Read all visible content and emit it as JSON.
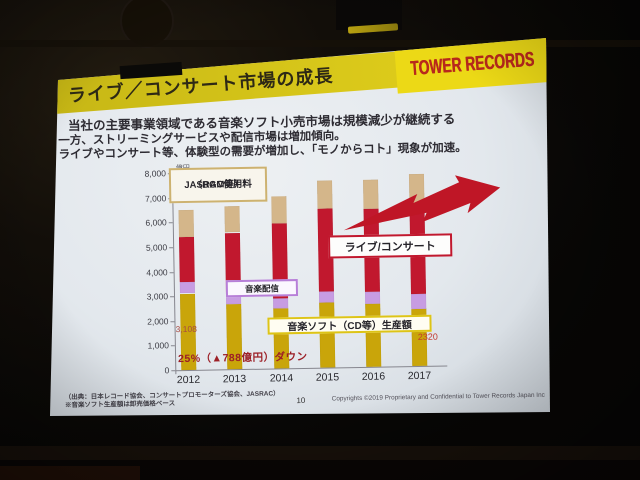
{
  "slide": {
    "title": "ライブ／コンサート市場の成長",
    "logo_text": "TOWER RECORDS",
    "body_lines": [
      "当社の主要事業領域である音楽ソフト小売市場は規模減少が継続する",
      "一方、ストリーミングサービスや配信市場は増加傾向。",
      "ライブやコンサート等、体験型の需要が増加し、「モノからコト」現象が加速。"
    ],
    "footer": {
      "source_line1": "（出典：日本レコード協会、コンサートプロモーターズ協会、JASRAC）",
      "source_line2": "※音楽ソフト生産額は卸売価格ベース",
      "page_number": "10",
      "copyright": "Copyrights ©2019  Proprietary and Confidential to Tower Records Japan Inc"
    }
  },
  "chart_data": {
    "type": "bar",
    "stacked": true,
    "title": "ライブ／コンサート市場の成長",
    "xlabel": "",
    "ylabel_unit": "億円",
    "ylim": [
      0,
      8000
    ],
    "ytick_step": 1000,
    "grid": false,
    "legend_position": "floating-boxes",
    "categories": [
      "2012",
      "2013",
      "2014",
      "2015",
      "2016",
      "2017"
    ],
    "series": [
      {
        "name": "音楽ソフト（CD等）生産額",
        "color": "#c9a50a",
        "values": [
          3108,
          2650,
          2450,
          2640,
          2560,
          2320
        ]
      },
      {
        "name": "音楽配信",
        "color": "#c79ce2",
        "values": [
          470,
          400,
          400,
          450,
          490,
          620
        ]
      },
      {
        "name": "ライブ/コンサート",
        "color": "#c1182e",
        "values": [
          1820,
          2490,
          3060,
          3370,
          3350,
          3500
        ]
      },
      {
        "name": "JASRAC使用料（BGM等）",
        "color": "#d4b68a",
        "values": [
          1115,
          1090,
          1075,
          1140,
          1180,
          1340
        ]
      }
    ],
    "legend_labels": {
      "jasrac_line1": "JASRAC使用料",
      "jasrac_line2": "（BGM等）",
      "live": "ライブ/コンサート",
      "digital": "音楽配信",
      "cd": "音楽ソフト（CD等）生産額"
    },
    "annotations": {
      "value_2012": "3,108",
      "value_2017": "2320",
      "down_note": "25%（▲788億円）ダウン"
    },
    "colors": {
      "band_yellow": "#d8c71a",
      "logo_red": "#b8291c",
      "arrow_red": "#bf1626"
    }
  }
}
